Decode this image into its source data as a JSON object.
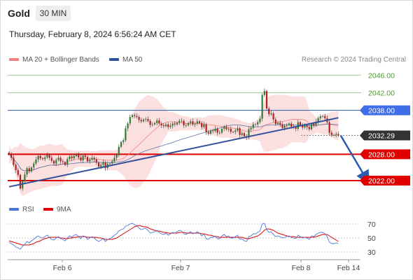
{
  "header": {
    "title": "Gold",
    "timeframe": "30 MIN",
    "timestamp": "Thursday, February 8, 2024 6:56:24 AM CET",
    "copyright": "Research © 2024 Trading Central"
  },
  "legend": {
    "items": [
      {
        "label": "MA 20 + Bollinger Bands",
        "color": "#f08080"
      },
      {
        "label": "MA 50",
        "color": "#2f4f9f"
      }
    ],
    "rsi_items": [
      {
        "label": "RSI",
        "color": "#4a78d8"
      },
      {
        "label": "9MA",
        "color": "#e00000"
      }
    ]
  },
  "chart_data": [
    {
      "type": "candlestick",
      "x_ticks": [
        "Feb 6",
        "Feb 7",
        "Feb 8",
        "Feb 14"
      ],
      "ylim": [
        2018.5,
        2047.5
      ],
      "levels": [
        {
          "value": 2046.0,
          "label": "2046.00",
          "style": "resistance-green"
        },
        {
          "value": 2042.0,
          "label": "2042.00",
          "style": "resistance-green"
        },
        {
          "value": 2038.0,
          "label": "2038.00",
          "style": "pivot-blue"
        },
        {
          "value": 2032.29,
          "label": "2032.29",
          "style": "last-price"
        },
        {
          "value": 2028.0,
          "label": "2028.00",
          "style": "support-red"
        },
        {
          "value": 2022.0,
          "label": "2022.00",
          "style": "support-red"
        }
      ],
      "close_series": [
        2028.0,
        2027.2,
        2025.6,
        2024.4,
        2023.3,
        2020.2,
        2021.8,
        2023.4,
        2024.8,
        2024.1,
        2025.0,
        2025.9,
        2026.8,
        2027.6,
        2027.1,
        2026.9,
        2027.3,
        2027.8,
        2027.2,
        2026.5,
        2025.9,
        2026.7,
        2027.2,
        2026.4,
        2026.2,
        2025.6,
        2026.9,
        2027.5,
        2027.1,
        2027.6,
        2028.0,
        2027.3,
        2026.6,
        2027.7,
        2027.4,
        2026.4,
        2026.8,
        2027.2,
        2026.8,
        2026.1,
        2025.2,
        2025.6,
        2026.2,
        2024.9,
        2025.8,
        2025.9,
        2026.4,
        2027.2,
        2027.8,
        2029.7,
        2030.8,
        2031.2,
        2033.9,
        2035.0,
        2036.5,
        2036.9,
        2036.7,
        2036.5,
        2035.8,
        2035.5,
        2035.9,
        2036.0,
        2035.6,
        2034.7,
        2034.8,
        2035.1,
        2035.7,
        2035.0,
        2034.6,
        2034.4,
        2034.8,
        2034.2,
        2034.5,
        2035.0,
        2034.8,
        2035.2,
        2035.6,
        2035.6,
        2034.6,
        2034.6,
        2035.1,
        2035.5,
        2034.8,
        2035.0,
        2035.5,
        2035.1,
        2034.2,
        2034.8,
        2033.0,
        2032.7,
        2033.4,
        2033.3,
        2033.8,
        2032.9,
        2032.9,
        2033.8,
        2034.2,
        2033.7,
        2033.8,
        2033.1,
        2033.1,
        2033.4,
        2033.9,
        2032.4,
        2032.8,
        2032.1,
        2031.8,
        2033.7,
        2034.0,
        2034.8,
        2034.8,
        2035.3,
        2036.1,
        2041.5,
        2042.4,
        2038.4,
        2037.1,
        2037.3,
        2035.9,
        2034.9,
        2035.2,
        2034.8,
        2034.0,
        2034.5,
        2034.6,
        2035.0,
        2034.3,
        2034.1,
        2033.8,
        2035.3,
        2034.7,
        2034.1,
        2034.5,
        2034.2,
        2033.7,
        2034.9,
        2034.6,
        2035.4,
        2036.2,
        2036.6,
        2036.7,
        2036.2,
        2035.3,
        2032.9,
        2032.4,
        2032.4,
        2032.6,
        2032.3
      ],
      "trendline": {
        "from": [
          0,
          2020.6
        ],
        "to": [
          147,
          2036.3
        ]
      },
      "forecast_arrow": {
        "from": [
          148,
          2032.3
        ],
        "to": [
          160,
          2022.0
        ]
      }
    },
    {
      "type": "line",
      "title": "RSI",
      "y_ticks": [
        70,
        50,
        30
      ],
      "ylim": [
        25,
        75
      ],
      "series": [
        {
          "name": "RSI",
          "values": [
            44,
            42,
            40,
            37,
            36,
            34,
            38,
            41,
            45,
            43,
            46,
            48,
            51,
            53,
            51,
            50,
            52,
            54,
            51,
            48,
            47,
            50,
            52,
            49,
            48,
            46,
            50,
            53,
            51,
            54,
            55,
            52,
            49,
            53,
            52,
            48,
            50,
            52,
            50,
            47,
            45,
            47,
            49,
            45,
            48,
            49,
            51,
            54,
            56,
            60,
            62,
            63,
            67,
            68,
            70,
            71,
            69,
            68,
            64,
            62,
            63,
            64,
            61,
            57,
            58,
            59,
            61,
            58,
            56,
            55,
            57,
            54,
            56,
            58,
            57,
            59,
            61,
            60,
            56,
            55,
            57,
            59,
            56,
            57,
            59,
            57,
            53,
            56,
            49,
            48,
            51,
            51,
            53,
            49,
            49,
            53,
            55,
            52,
            53,
            50,
            50,
            52,
            54,
            48,
            49,
            46,
            45,
            52,
            53,
            56,
            56,
            58,
            60,
            70,
            71,
            62,
            58,
            59,
            55,
            52,
            53,
            52,
            50,
            51,
            52,
            53,
            51,
            50,
            49,
            54,
            52,
            50,
            51,
            50,
            48,
            53,
            52,
            55,
            57,
            58,
            58,
            56,
            52,
            44,
            42,
            42,
            43,
            42
          ]
        },
        {
          "name": "9MA",
          "values": [
            46,
            45,
            44,
            43,
            42,
            41,
            40,
            40,
            40,
            40,
            41,
            42,
            44,
            45,
            46,
            48,
            49,
            50,
            51,
            51,
            51,
            51,
            51,
            50,
            50,
            49,
            49,
            50,
            50,
            51,
            51,
            52,
            52,
            52,
            52,
            51,
            51,
            51,
            51,
            51,
            50,
            50,
            49,
            48,
            48,
            48,
            48,
            49,
            50,
            52,
            54,
            56,
            58,
            60,
            62,
            64,
            66,
            67,
            68,
            67,
            66,
            66,
            65,
            63,
            62,
            61,
            60,
            60,
            59,
            58,
            58,
            57,
            57,
            57,
            57,
            57,
            58,
            58,
            58,
            57,
            57,
            57,
            57,
            57,
            57,
            57,
            56,
            56,
            55,
            54,
            54,
            53,
            52,
            52,
            51,
            51,
            51,
            51,
            51,
            51,
            51,
            51,
            51,
            51,
            51,
            50,
            49,
            49,
            50,
            51,
            52,
            53,
            55,
            58,
            61,
            63,
            63,
            62,
            61,
            59,
            57,
            56,
            55,
            54,
            53,
            52,
            52,
            52,
            51,
            51,
            51,
            51,
            51,
            51,
            51,
            51,
            51,
            52,
            53,
            54,
            55,
            55,
            55,
            53,
            51,
            49,
            47,
            45
          ]
        }
      ]
    }
  ]
}
